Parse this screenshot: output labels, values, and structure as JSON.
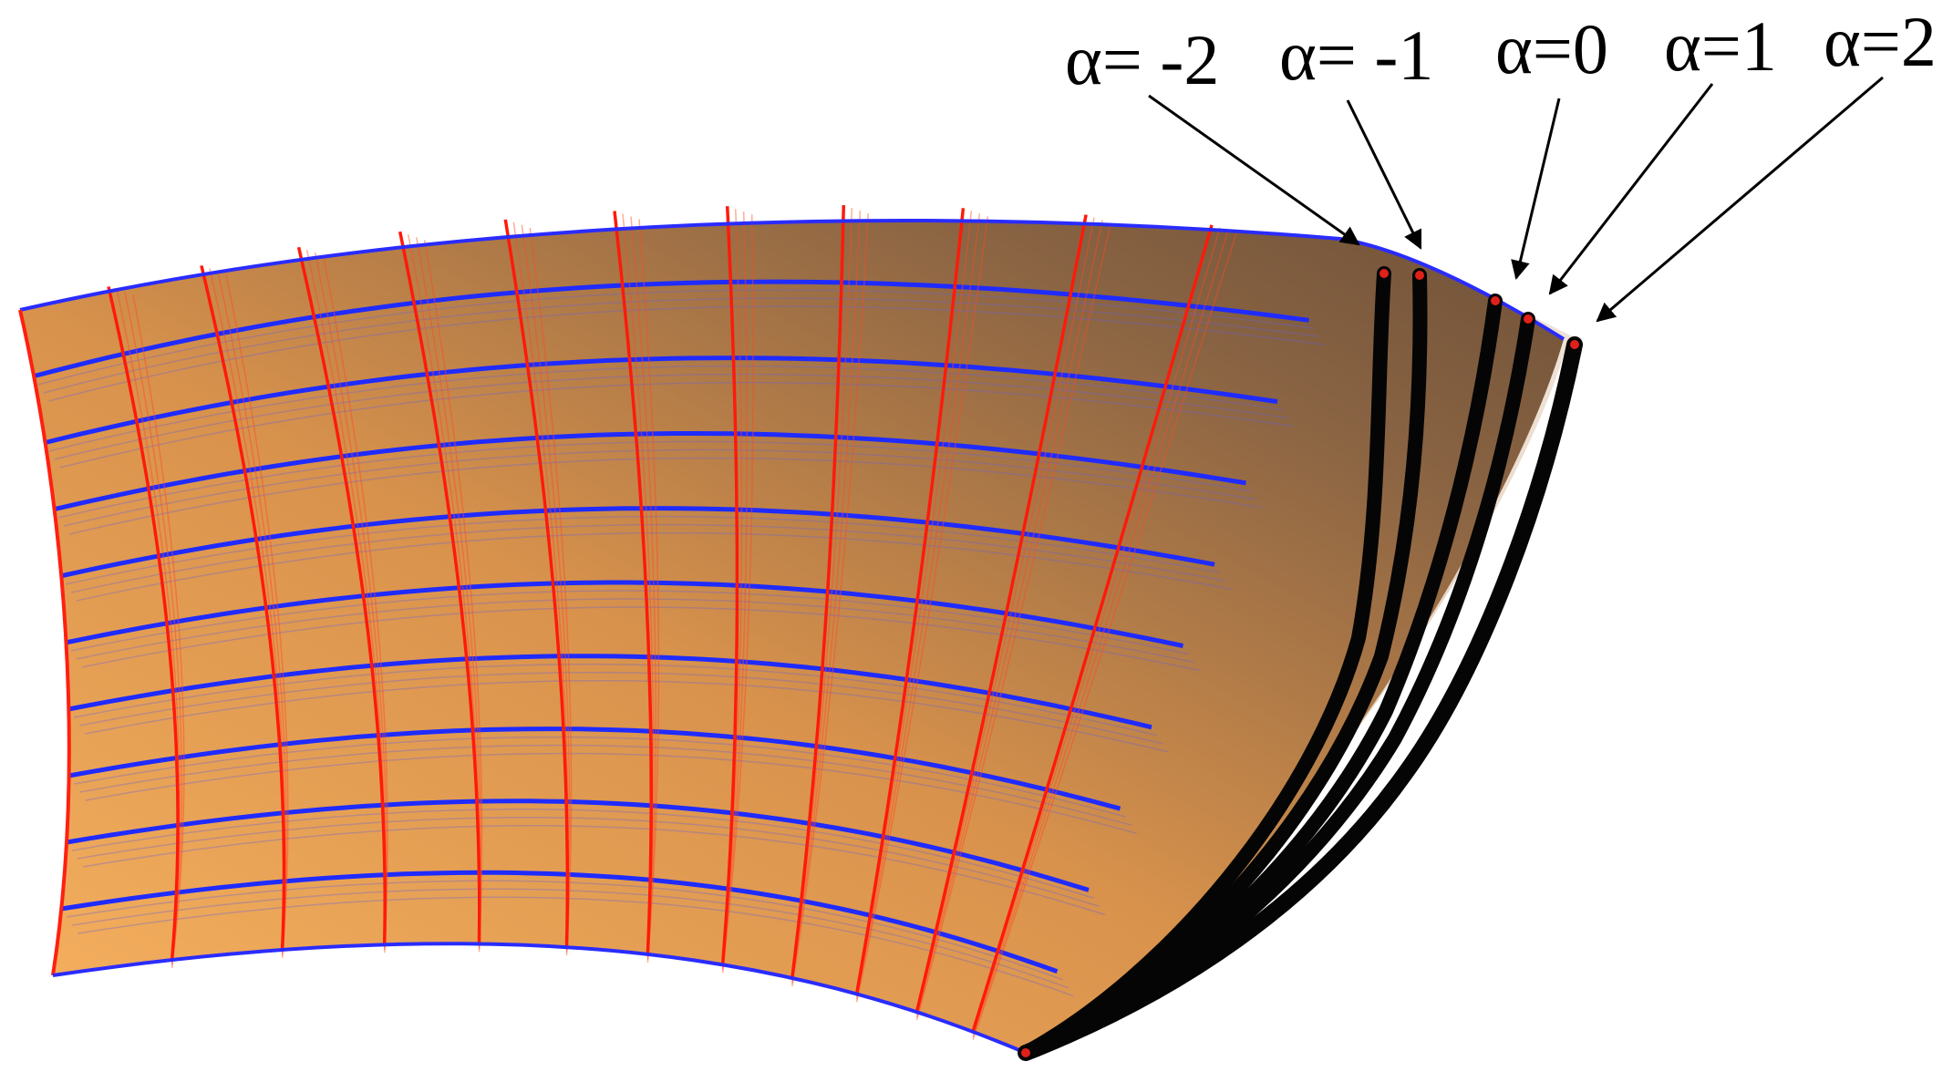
{
  "figure": {
    "surface_colors": {
      "fill_light": "#f6b062",
      "fill_mid": "#d5904a",
      "fill_dark": "#7a5a3c",
      "fill_fade": "#e9d8c8",
      "u_lines": "#ff1a0a",
      "v_lines": "#1f2bff",
      "curves": "#050505"
    },
    "labels": [
      {
        "id": "alpha-minus-2",
        "text": "α= -2"
      },
      {
        "id": "alpha-minus-1",
        "text": "α= -1"
      },
      {
        "id": "alpha-0",
        "text": "α=0"
      },
      {
        "id": "alpha-1",
        "text": "α=1"
      },
      {
        "id": "alpha-2",
        "text": "α=2"
      }
    ]
  }
}
